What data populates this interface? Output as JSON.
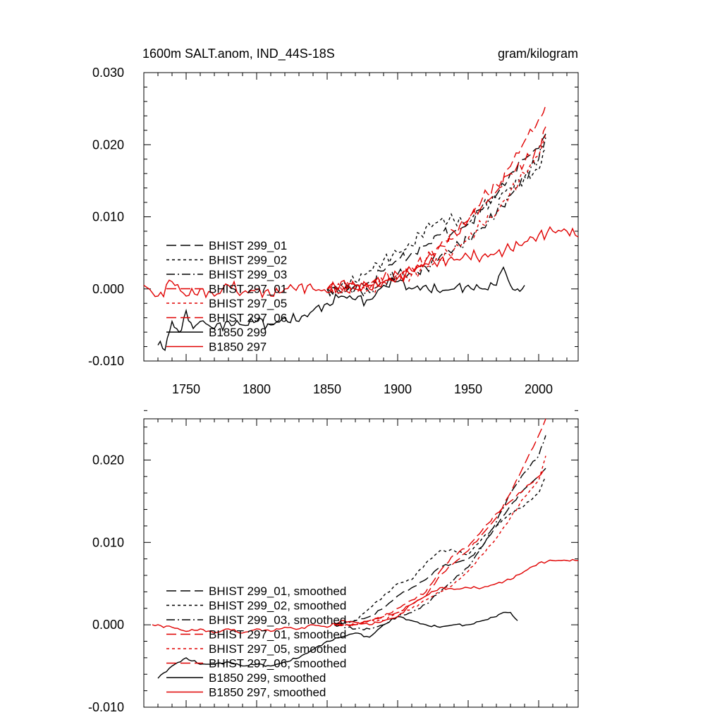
{
  "chart_data": [
    {
      "type": "line",
      "title": "1600m SALT.anom, IND_44S-18S",
      "units": "gram/kilogram",
      "xlim": [
        1720,
        2028
      ],
      "ylim": [
        -0.01,
        0.03
      ],
      "x_ticks": [
        "1750",
        "1800",
        "1850",
        "1900",
        "1950",
        "2000"
      ],
      "y_ticks": [
        "-0.010",
        "0.000",
        "0.010",
        "0.020",
        "0.030"
      ],
      "legend_position": "lower-left",
      "series": [
        {
          "name": "BHIST 299_01",
          "color": "#000000",
          "dash": "long-dash",
          "x": [
            1850,
            1860,
            1870,
            1880,
            1890,
            1900,
            1910,
            1920,
            1930,
            1940,
            1950,
            1960,
            1970,
            1980,
            1990,
            2000,
            2005
          ],
          "y": [
            0.0,
            -0.0005,
            0.0005,
            0.001,
            0.0025,
            0.004,
            0.005,
            0.006,
            0.0075,
            0.008,
            0.009,
            0.011,
            0.013,
            0.016,
            0.018,
            0.0195,
            0.0215
          ]
        },
        {
          "name": "BHIST 299_02",
          "color": "#000000",
          "dash": "short-dash",
          "x": [
            1850,
            1860,
            1870,
            1880,
            1890,
            1900,
            1910,
            1920,
            1930,
            1940,
            1950,
            1960,
            1970,
            1980,
            1990,
            2000,
            2005
          ],
          "y": [
            0.0,
            0.0005,
            0.001,
            0.0025,
            0.004,
            0.005,
            0.006,
            0.0085,
            0.0095,
            0.0095,
            0.009,
            0.0115,
            0.0125,
            0.014,
            0.0155,
            0.0165,
            0.0195
          ]
        },
        {
          "name": "BHIST 299_03",
          "color": "#000000",
          "dash": "dash-dot",
          "x": [
            1850,
            1860,
            1870,
            1880,
            1890,
            1900,
            1910,
            1920,
            1930,
            1940,
            1950,
            1960,
            1970,
            1980,
            1990,
            2000,
            2005
          ],
          "y": [
            0.0,
            -0.0005,
            0.0,
            -0.0005,
            0.001,
            0.002,
            0.002,
            0.003,
            0.0045,
            0.0055,
            0.007,
            0.0085,
            0.0105,
            0.013,
            0.0155,
            0.018,
            0.021
          ]
        },
        {
          "name": "BHIST 297_01",
          "color": "#e00000",
          "dash": "long-dash",
          "x": [
            1850,
            1860,
            1870,
            1880,
            1890,
            1900,
            1910,
            1920,
            1930,
            1940,
            1950,
            1960,
            1970,
            1980,
            1990,
            2000,
            2005
          ],
          "y": [
            0.0,
            0.0005,
            0.0,
            0.0005,
            0.001,
            0.002,
            0.002,
            0.004,
            0.006,
            0.007,
            0.0095,
            0.0115,
            0.0135,
            0.017,
            0.0205,
            0.0235,
            0.0255
          ]
        },
        {
          "name": "BHIST 297_05",
          "color": "#e00000",
          "dash": "short-dash",
          "x": [
            1850,
            1860,
            1870,
            1880,
            1890,
            1900,
            1910,
            1920,
            1930,
            1940,
            1950,
            1960,
            1970,
            1980,
            1990,
            2000,
            2005
          ],
          "y": [
            0.0,
            0.0,
            0.0005,
            0.0,
            0.001,
            0.0015,
            0.002,
            0.003,
            0.004,
            0.0055,
            0.007,
            0.009,
            0.0105,
            0.0135,
            0.016,
            0.0185,
            0.0215
          ]
        },
        {
          "name": "BHIST 297_06",
          "color": "#e00000",
          "dash": "long-dash",
          "x": [
            1850,
            1860,
            1870,
            1880,
            1890,
            1900,
            1910,
            1920,
            1930,
            1940,
            1950,
            1960,
            1970,
            1980,
            1990,
            2000,
            2005
          ],
          "y": [
            0.0,
            -0.0005,
            0.0005,
            0.0005,
            0.0015,
            0.002,
            0.003,
            0.004,
            0.006,
            0.008,
            0.0095,
            0.0125,
            0.0145,
            0.016,
            0.0175,
            0.0195,
            0.0225
          ]
        },
        {
          "name": "B1850 299",
          "color": "#000000",
          "dash": "solid",
          "x": [
            1730,
            1735,
            1740,
            1745,
            1750,
            1755,
            1760,
            1770,
            1780,
            1790,
            1800,
            1810,
            1820,
            1830,
            1840,
            1850,
            1860,
            1870,
            1880,
            1890,
            1900,
            1910,
            1920,
            1930,
            1940,
            1950,
            1960,
            1970,
            1975,
            1980,
            1985,
            1990
          ],
          "y": [
            -0.0078,
            -0.0085,
            -0.0045,
            -0.006,
            -0.003,
            -0.0055,
            -0.0045,
            -0.0055,
            -0.0045,
            -0.005,
            -0.0045,
            -0.005,
            -0.004,
            -0.0045,
            -0.003,
            -0.002,
            -0.001,
            -0.0015,
            -0.0015,
            0.0005,
            0.001,
            0.0,
            0.0005,
            -0.0005,
            0.0,
            0.0005,
            0.0,
            0.0005,
            0.003,
            0.0005,
            0.0,
            0.0005
          ]
        },
        {
          "name": "B1850 297",
          "color": "#e00000",
          "dash": "solid",
          "x": [
            1720,
            1730,
            1740,
            1750,
            1760,
            1770,
            1780,
            1790,
            1800,
            1810,
            1820,
            1830,
            1840,
            1850,
            1860,
            1870,
            1880,
            1890,
            1900,
            1910,
            1920,
            1930,
            1940,
            1950,
            1960,
            1970,
            1980,
            1990,
            2000,
            2010,
            2020,
            2028
          ],
          "y": [
            0.0005,
            -0.001,
            0.001,
            -0.001,
            0.0,
            -0.001,
            0.0005,
            -0.0005,
            0.0,
            -0.001,
            0.0,
            0.0005,
            0.0,
            -0.0005,
            0.001,
            0.0005,
            0.0,
            0.001,
            0.0015,
            0.0025,
            0.0035,
            0.004,
            0.004,
            0.0045,
            0.0045,
            0.005,
            0.0055,
            0.0065,
            0.0075,
            0.008,
            0.008,
            0.0072
          ]
        }
      ]
    },
    {
      "type": "line",
      "xlim": [
        1720,
        2028
      ],
      "ylim": [
        -0.01,
        0.025
      ],
      "y_ticks": [
        "-0.010",
        "0.000",
        "0.010",
        "0.020"
      ],
      "legend_position": "lower-left",
      "series": [
        {
          "name": "BHIST 299_01, smoothed",
          "color": "#000000",
          "dash": "long-dash",
          "x": [
            1855,
            1870,
            1880,
            1890,
            1900,
            1910,
            1920,
            1930,
            1940,
            1950,
            1960,
            1970,
            1980,
            1990,
            2000,
            2005
          ],
          "y": [
            0.0,
            0.0005,
            0.001,
            0.002,
            0.0035,
            0.0045,
            0.0055,
            0.007,
            0.0075,
            0.008,
            0.0095,
            0.012,
            0.0145,
            0.0165,
            0.018,
            0.019
          ]
        },
        {
          "name": "BHIST 299_02, smoothed",
          "color": "#000000",
          "dash": "short-dash",
          "x": [
            1855,
            1870,
            1880,
            1890,
            1900,
            1910,
            1920,
            1930,
            1940,
            1950,
            1960,
            1970,
            1980,
            1990,
            2000,
            2005
          ],
          "y": [
            0.0,
            0.0005,
            0.002,
            0.0035,
            0.005,
            0.0055,
            0.0075,
            0.009,
            0.009,
            0.0085,
            0.0105,
            0.012,
            0.0135,
            0.0145,
            0.016,
            0.018
          ]
        },
        {
          "name": "BHIST 299_03, smoothed",
          "color": "#000000",
          "dash": "dash-dot",
          "x": [
            1855,
            1870,
            1880,
            1890,
            1900,
            1910,
            1920,
            1930,
            1940,
            1950,
            1960,
            1970,
            1980,
            1990,
            2000,
            2005
          ],
          "y": [
            0.0,
            -0.0005,
            -0.0005,
            0.0,
            0.001,
            0.0015,
            0.0025,
            0.004,
            0.0055,
            0.007,
            0.0095,
            0.0125,
            0.016,
            0.0185,
            0.0205,
            0.023
          ]
        },
        {
          "name": "BHIST 297_01, smoothed",
          "color": "#e00000",
          "dash": "long-dash",
          "x": [
            1855,
            1870,
            1880,
            1890,
            1900,
            1910,
            1920,
            1930,
            1940,
            1950,
            1960,
            1970,
            1980,
            1990,
            2000,
            2005
          ],
          "y": [
            0.0,
            0.0,
            0.0005,
            0.001,
            0.0015,
            0.0025,
            0.0035,
            0.006,
            0.0075,
            0.009,
            0.011,
            0.013,
            0.016,
            0.0195,
            0.023,
            0.025
          ]
        },
        {
          "name": "BHIST 297_05, smoothed",
          "color": "#e00000",
          "dash": "short-dash",
          "x": [
            1855,
            1870,
            1880,
            1890,
            1900,
            1910,
            1920,
            1930,
            1940,
            1950,
            1960,
            1970,
            1980,
            1990,
            2000,
            2005
          ],
          "y": [
            0.0,
            0.0,
            0.0005,
            0.0005,
            0.0015,
            0.002,
            0.003,
            0.004,
            0.005,
            0.0065,
            0.0085,
            0.0105,
            0.013,
            0.0155,
            0.0175,
            0.0205
          ]
        },
        {
          "name": "BHIST 297_06, smoothed",
          "color": "#e00000",
          "dash": "long-dash",
          "x": [
            1855,
            1870,
            1880,
            1890,
            1900,
            1910,
            1920,
            1930,
            1940,
            1950,
            1960,
            1970,
            1980,
            1990,
            2000,
            2005
          ],
          "y": [
            0.0,
            0.0,
            0.0005,
            0.001,
            0.002,
            0.003,
            0.004,
            0.0065,
            0.0085,
            0.0095,
            0.0115,
            0.0135,
            0.015,
            0.0165,
            0.018,
            0.019
          ]
        },
        {
          "name": "B1850 299, smoothed",
          "color": "#000000",
          "dash": "solid",
          "x": [
            1730,
            1740,
            1750,
            1760,
            1770,
            1780,
            1790,
            1800,
            1810,
            1820,
            1830,
            1840,
            1850,
            1860,
            1870,
            1880,
            1890,
            1900,
            1910,
            1920,
            1930,
            1940,
            1950,
            1960,
            1970,
            1975,
            1980,
            1985
          ],
          "y": [
            -0.0065,
            -0.005,
            -0.004,
            -0.0048,
            -0.0048,
            -0.0045,
            -0.005,
            -0.0048,
            -0.005,
            -0.0045,
            -0.004,
            -0.003,
            -0.002,
            -0.0015,
            -0.001,
            -0.0015,
            0.0,
            0.001,
            0.0005,
            0.0,
            -0.0003,
            0.0,
            0.0,
            0.0005,
            0.001,
            0.0015,
            0.0015,
            0.0005
          ]
        },
        {
          "name": "B1850 297, smoothed",
          "color": "#e00000",
          "dash": "solid",
          "x": [
            1726,
            1740,
            1750,
            1760,
            1770,
            1780,
            1790,
            1800,
            1810,
            1820,
            1830,
            1840,
            1850,
            1860,
            1870,
            1880,
            1890,
            1900,
            1910,
            1920,
            1930,
            1940,
            1950,
            1960,
            1970,
            1980,
            1990,
            2000,
            2010,
            2020,
            2028
          ],
          "y": [
            0.0,
            -0.0003,
            -0.0008,
            -0.0005,
            -0.001,
            -0.0005,
            -0.001,
            -0.0005,
            -0.0008,
            -0.0003,
            -0.0005,
            0.0,
            -0.0003,
            0.0005,
            0.0003,
            0.0,
            0.0005,
            0.001,
            0.0025,
            0.0035,
            0.0045,
            0.0043,
            0.0045,
            0.0045,
            0.005,
            0.0055,
            0.0065,
            0.0075,
            0.0078,
            0.0078,
            0.0078
          ]
        }
      ]
    }
  ]
}
